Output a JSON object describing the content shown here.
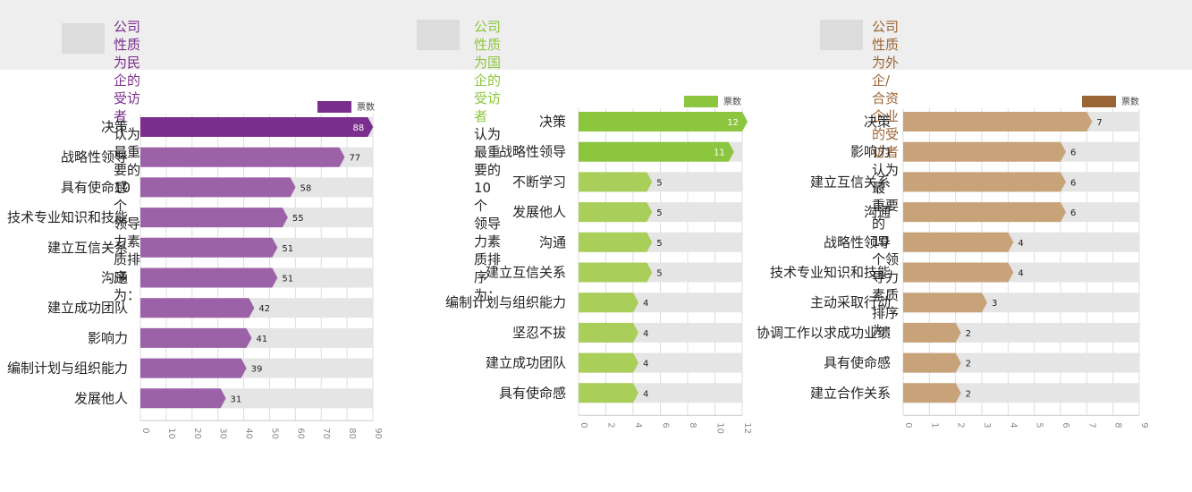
{
  "headers": [
    {
      "highlight": "公司性质为民企的受访者",
      "rest_line1": "认为最重要的10个",
      "line2": "领导力素质排序为："
    },
    {
      "highlight": "公司性质为国企的受访者",
      "rest_line1": "认为最重要的10个",
      "line2": "领导力素质排序为："
    },
    {
      "highlight": "公司性质为外企/合资企业的受访者",
      "rest_line1": "认为最",
      "line2": "重要的10个领导力素质排序为："
    }
  ],
  "chart_data": [
    {
      "type": "bar",
      "orientation": "horizontal",
      "legend": "票数",
      "legend_position": "top-right",
      "color": "#9b62a8",
      "legend_color": "#7a2e8e",
      "highlight_color": "#7a2e8e",
      "categories": [
        "决策",
        "战略性领导",
        "具有使命感",
        "技术专业知识和技能",
        "建立互信关系",
        "沟通",
        "建立成功团队",
        "影响力",
        "编制计划与组织能力",
        "发展他人"
      ],
      "values": [
        88,
        77,
        58,
        55,
        51,
        51,
        42,
        41,
        39,
        31
      ],
      "xlim": [
        0,
        90
      ],
      "xticks": [
        "0",
        "10",
        "20",
        "30",
        "40",
        "50",
        "60",
        "70",
        "80",
        "90"
      ]
    },
    {
      "type": "bar",
      "orientation": "horizontal",
      "legend": "票数",
      "legend_position": "top-right",
      "color": "#a9ce5a",
      "legend_color": "#8cc63f",
      "highlight_color": "#8cc63f",
      "categories": [
        "决策",
        "战略性领导",
        "不断学习",
        "发展他人",
        "沟通",
        "建立互信关系",
        "编制计划与组织能力",
        "坚忍不拔",
        "建立成功团队",
        "具有使命感"
      ],
      "values": [
        12,
        11,
        5,
        5,
        5,
        5,
        4,
        4,
        4,
        4
      ],
      "xlim": [
        0,
        12
      ],
      "xticks": [
        "0",
        "2",
        "4",
        "6",
        "8",
        "10",
        "12"
      ]
    },
    {
      "type": "bar",
      "orientation": "horizontal",
      "legend": "票数",
      "legend_position": "top-right",
      "color": "#c8a37a",
      "legend_color": "#9a6535",
      "highlight_color": "#b08050",
      "categories": [
        "决策",
        "影响力",
        "建立互信关系",
        "沟通",
        "战略性领导",
        "技术专业知识和技能",
        "主动采取行动",
        "协调工作以求成功业绩",
        "具有使命感",
        "建立合作关系"
      ],
      "values": [
        7,
        6,
        6,
        6,
        4,
        4,
        3,
        2,
        2,
        2
      ],
      "xlim": [
        0,
        9
      ],
      "xticks": [
        "0",
        "1",
        "2",
        "3",
        "4",
        "5",
        "6",
        "7",
        "8",
        "9"
      ]
    }
  ]
}
